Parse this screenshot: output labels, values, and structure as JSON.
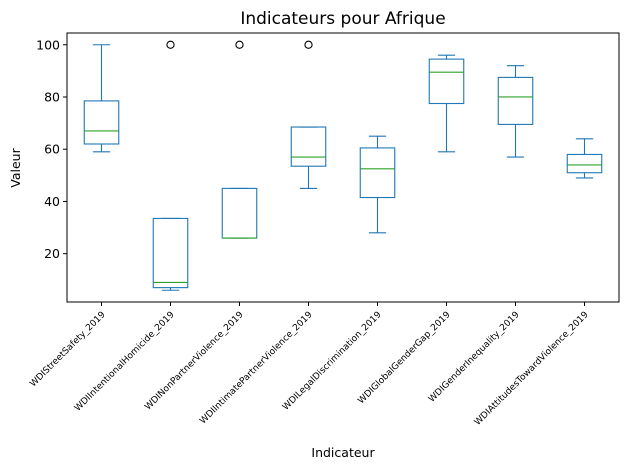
{
  "chart_data": {
    "type": "box",
    "title": "Indicateurs pour Afrique",
    "xlabel": "Indicateur",
    "ylabel": "Valeur",
    "ylim": [
      1.5,
      104.5
    ],
    "yticks": [
      20,
      40,
      60,
      80,
      100
    ],
    "grid": false,
    "colors": {
      "box": "#1f77b4",
      "median": "#2ca02c",
      "flier": "#000000"
    },
    "categories": [
      "WDIStreetSafety_2019",
      "WDIIntentionalHomicide_2019",
      "WDINonPartnerViolence_2019",
      "WDIIntimatePartnerViolence_2019",
      "WDILegalDiscrimination_2019",
      "WDIGlobalGenderGap_2019",
      "WDIGenderInequality_2019",
      "WDIAttitudesTowardViolence_2019"
    ],
    "boxes": [
      {
        "whisker_low": 59,
        "q1": 62,
        "median": 67,
        "q3": 78.5,
        "whisker_high": 100,
        "fliers": []
      },
      {
        "whisker_low": 6,
        "q1": 7,
        "median": 9,
        "q3": 33.5,
        "whisker_high": 33.5,
        "fliers": [
          100
        ]
      },
      {
        "whisker_low": 26,
        "q1": 26,
        "median": 26,
        "q3": 45,
        "whisker_high": 45,
        "fliers": [
          100
        ]
      },
      {
        "whisker_low": 45,
        "q1": 53.5,
        "median": 57,
        "q3": 68.5,
        "whisker_high": 68.5,
        "fliers": [
          100
        ]
      },
      {
        "whisker_low": 28,
        "q1": 41.5,
        "median": 52.5,
        "q3": 60.5,
        "whisker_high": 65,
        "fliers": []
      },
      {
        "whisker_low": 59,
        "q1": 77.5,
        "median": 89.5,
        "q3": 94.5,
        "whisker_high": 96,
        "fliers": []
      },
      {
        "whisker_low": 57,
        "q1": 69.5,
        "median": 80,
        "q3": 87.5,
        "whisker_high": 92,
        "fliers": []
      },
      {
        "whisker_low": 49,
        "q1": 51,
        "median": 54,
        "q3": 58,
        "whisker_high": 64,
        "fliers": []
      }
    ]
  }
}
